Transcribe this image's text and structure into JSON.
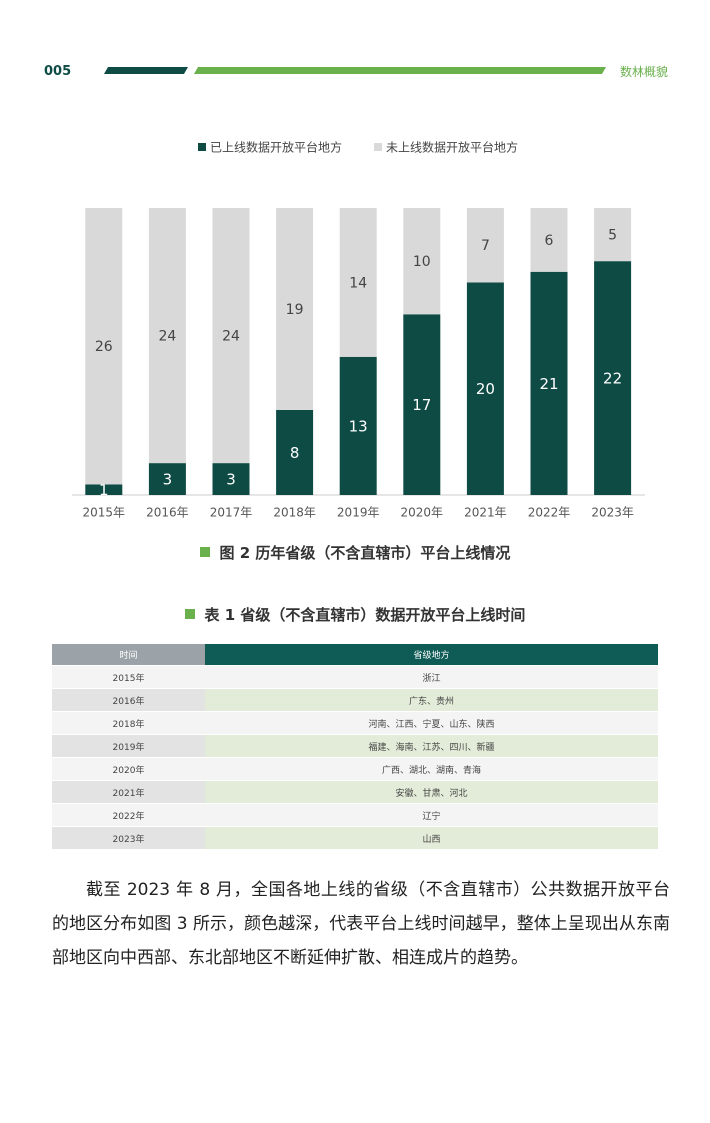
{
  "header": {
    "page_number": "005",
    "section": "数林概貌"
  },
  "chart_data": {
    "type": "bar",
    "stacked": true,
    "legend": "top",
    "categories": [
      "2015年",
      "2016年",
      "2017年",
      "2018年",
      "2019年",
      "2020年",
      "2021年",
      "2022年",
      "2023年"
    ],
    "series": [
      {
        "name": "已上线数据开放平台地方",
        "color": "#0e4b45",
        "values": [
          1,
          3,
          3,
          8,
          13,
          17,
          20,
          21,
          22
        ]
      },
      {
        "name": "未上线数据开放平台地方",
        "color": "#d9d9d9",
        "values": [
          26,
          24,
          24,
          19,
          14,
          10,
          7,
          6,
          5
        ]
      }
    ]
  },
  "figure_caption": "图 2  历年省级（不含直辖市）平台上线情况",
  "table": {
    "caption": "表 1  省级（不含直辖市）数据开放平台上线时间",
    "columns": [
      "时间",
      "省级地方"
    ],
    "rows": [
      [
        "2015年",
        "浙江"
      ],
      [
        "2016年",
        "广东、贵州"
      ],
      [
        "2018年",
        "河南、江西、宁夏、山东、陕西"
      ],
      [
        "2019年",
        "福建、海南、江苏、四川、新疆"
      ],
      [
        "2020年",
        "广西、湖北、湖南、青海"
      ],
      [
        "2021年",
        "安徽、甘肃、河北"
      ],
      [
        "2022年",
        "辽宁"
      ],
      [
        "2023年",
        "山西"
      ]
    ]
  },
  "paragraph": "截至 2023 年 8 月，全国各地上线的省级（不含直辖市）公共数据开放平台的地区分布如图 3 所示，颜色越深，代表平台上线时间越早，整体上呈现出从东南部地区向中西部、东北部地区不断延伸扩散、相连成片的趋势。"
}
